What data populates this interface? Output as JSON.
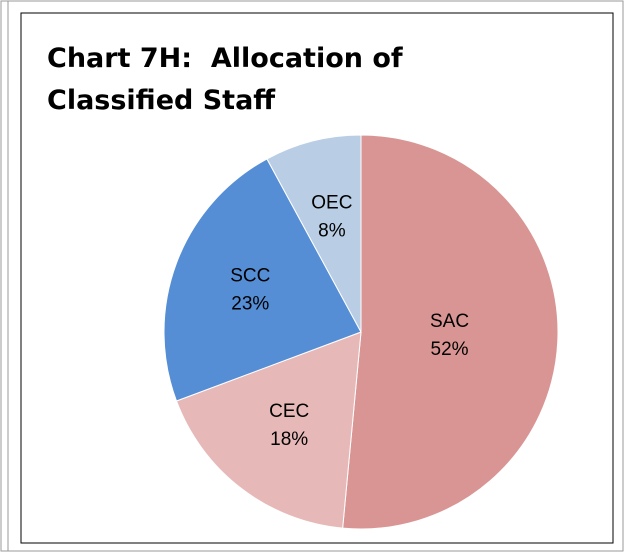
{
  "chart_data": {
    "type": "pie",
    "title": "Chart 7H:  Allocation of Classified Staff",
    "categories": [
      "SAC",
      "CEC",
      "SCC",
      "OEC"
    ],
    "values": [
      52,
      18,
      23,
      8
    ],
    "value_labels": [
      "52%",
      "18%",
      "23%",
      "8%"
    ],
    "colors": [
      "#d99594",
      "#e6b9b8",
      "#558ed5",
      "#b9cde5"
    ]
  }
}
